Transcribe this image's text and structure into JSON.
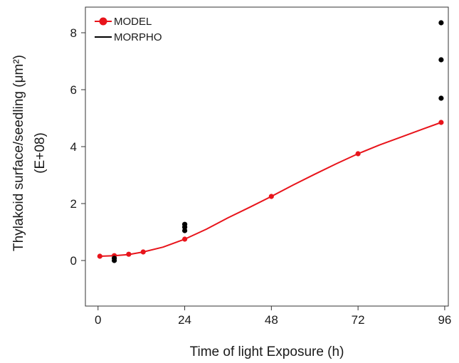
{
  "chart_data": {
    "type": "scatter",
    "xlabel": "Time of light Exposure (h)",
    "ylabel": "Thylakoid surface/seedling (μm²)",
    "ylabel2": "(E+08)",
    "xlim": [
      -3.5,
      97
    ],
    "ylim": [
      -1.6,
      8.9
    ],
    "xticks": [
      0,
      24,
      48,
      72,
      96
    ],
    "yticks": [
      0,
      2,
      4,
      6,
      8
    ],
    "grid": false,
    "legend_position": "top-left",
    "series": [
      {
        "name": "MODEL",
        "color": "#e8141b",
        "style": "line-with-points",
        "points": [
          [
            0.5,
            0.15
          ],
          [
            4.5,
            0.17
          ],
          [
            8.5,
            0.22
          ],
          [
            12.5,
            0.3
          ],
          [
            24,
            0.75
          ],
          [
            48,
            2.25
          ],
          [
            72,
            3.75
          ],
          [
            95,
            4.85
          ]
        ],
        "curve": [
          [
            0.5,
            0.15
          ],
          [
            4.5,
            0.17
          ],
          [
            8.5,
            0.21
          ],
          [
            12.5,
            0.3
          ],
          [
            18,
            0.47
          ],
          [
            24,
            0.75
          ],
          [
            30,
            1.1
          ],
          [
            36,
            1.5
          ],
          [
            42,
            1.87
          ],
          [
            48,
            2.25
          ],
          [
            54,
            2.65
          ],
          [
            60,
            3.03
          ],
          [
            66,
            3.4
          ],
          [
            72,
            3.75
          ],
          [
            78,
            4.06
          ],
          [
            84,
            4.34
          ],
          [
            90,
            4.62
          ],
          [
            95,
            4.85
          ]
        ]
      },
      {
        "name": "MORPHO",
        "color": "#000000",
        "style": "points",
        "points": [
          [
            4.5,
            0.0
          ],
          [
            4.5,
            0.08
          ],
          [
            24,
            1.05
          ],
          [
            24,
            1.17
          ],
          [
            24,
            1.27
          ],
          [
            95,
            5.7
          ],
          [
            95,
            7.05
          ],
          [
            95,
            8.35
          ]
        ]
      }
    ]
  }
}
